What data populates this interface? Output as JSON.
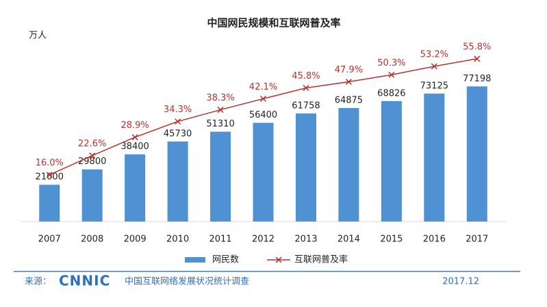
{
  "chart_data": {
    "type": "bar",
    "title": "中国网民规模和互联网普及率",
    "unit_label": "万人",
    "categories": [
      "2007",
      "2008",
      "2009",
      "2010",
      "2011",
      "2012",
      "2013",
      "2014",
      "2015",
      "2016",
      "2017"
    ],
    "series": [
      {
        "name": "网民数",
        "type": "bar",
        "color": "#4f91d3",
        "values": [
          21000,
          29800,
          38400,
          45730,
          51310,
          56400,
          61758,
          64875,
          68826,
          73125,
          77198
        ]
      },
      {
        "name": "互联网普及率",
        "type": "line",
        "color": "#b8322a",
        "axis": "y2",
        "values": [
          16.0,
          22.6,
          28.9,
          34.3,
          38.3,
          42.1,
          45.8,
          47.9,
          50.3,
          53.2,
          55.8
        ],
        "value_labels": [
          "16.0%",
          "22.6%",
          "28.9%",
          "34.3%",
          "38.3%",
          "42.1%",
          "45.8%",
          "47.9%",
          "50.3%",
          "53.2%",
          "55.8%"
        ]
      }
    ],
    "ylim": [
      0,
      100000
    ],
    "y2lim": [
      0,
      60
    ],
    "legend": "bottom"
  },
  "source": {
    "label": "来源：",
    "logo": "CNNIC",
    "text": "中国互联网络发展状况统计调查",
    "date": "2017.12"
  }
}
